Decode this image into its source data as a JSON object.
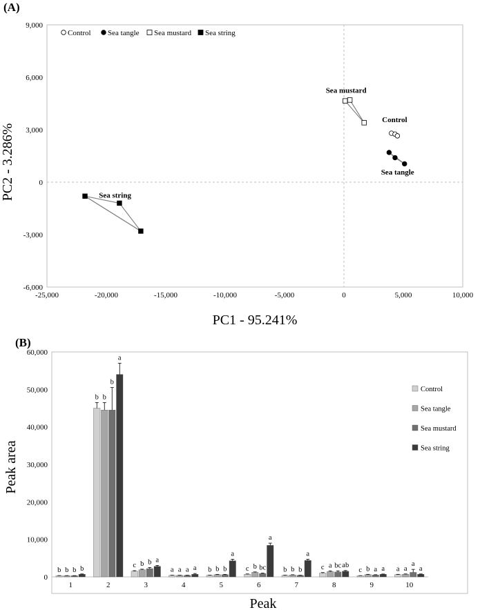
{
  "panels": {
    "a_label": "(A)",
    "b_label": "(B)"
  },
  "chart_data": [
    {
      "type": "scatter",
      "panel": "(A)",
      "xlabel": "PC1 - 95.241%",
      "ylabel": "PC2 - 3.286%",
      "xlim": [
        -25000,
        10000
      ],
      "ylim": [
        -6000,
        9000
      ],
      "xticks": [
        -25000,
        -20000,
        -15000,
        -10000,
        -5000,
        0,
        5000,
        10000
      ],
      "yticks": [
        -6000,
        -3000,
        0,
        3000,
        6000,
        9000
      ],
      "xtick_labels": [
        "-25,000",
        "-20,000",
        "-15,000",
        "-10,000",
        "-5,000",
        "0",
        "5,000",
        "10,000"
      ],
      "ytick_labels": [
        "-6,000",
        "-3,000",
        "0",
        "3,000",
        "6,000",
        "9,000"
      ],
      "legend": [
        "Control",
        "Sea tangle",
        "Sea mustard",
        "Sea string"
      ],
      "series": [
        {
          "name": "Control",
          "label": "Control",
          "marker": "open-circle",
          "points": [
            [
              4000,
              2800
            ],
            [
              4300,
              2750
            ],
            [
              4500,
              2650
            ]
          ]
        },
        {
          "name": "Sea tangle",
          "label": "Sea tangle",
          "marker": "filled-circle",
          "points": [
            [
              3800,
              1700
            ],
            [
              4300,
              1400
            ],
            [
              5100,
              1050
            ]
          ]
        },
        {
          "name": "Sea mustard",
          "label": "Sea mustard",
          "marker": "open-square",
          "points": [
            [
              100,
              4650
            ],
            [
              500,
              4700
            ],
            [
              1700,
              3400
            ]
          ]
        },
        {
          "name": "Sea string",
          "label": "Sea string",
          "marker": "filled-square",
          "points": [
            [
              -21800,
              -800
            ],
            [
              -18900,
              -1200
            ],
            [
              -17100,
              -2800
            ]
          ]
        }
      ]
    },
    {
      "type": "bar",
      "panel": "(B)",
      "xlabel": "Peak",
      "ylabel": "Peak area",
      "ylim": [
        0,
        60000
      ],
      "yticks": [
        0,
        10000,
        20000,
        30000,
        40000,
        50000,
        60000
      ],
      "ytick_labels": [
        "0",
        "10,000",
        "20,000",
        "30,000",
        "40,000",
        "50,000",
        "60,000"
      ],
      "categories": [
        "1",
        "2",
        "3",
        "4",
        "5",
        "6",
        "7",
        "8",
        "9",
        "10"
      ],
      "series": [
        {
          "name": "Control",
          "color": "#d0d0d0",
          "values": [
            300,
            45000,
            1500,
            400,
            400,
            700,
            400,
            1000,
            300,
            600
          ],
          "errors": [
            50,
            1500,
            150,
            50,
            60,
            80,
            60,
            150,
            40,
            80
          ],
          "letters": [
            "b",
            "b",
            "c",
            "a",
            "b",
            "c",
            "b",
            "c",
            "c",
            "a"
          ]
        },
        {
          "name": "Sea tangle",
          "color": "#a6a6a6",
          "values": [
            300,
            44500,
            1900,
            400,
            600,
            1200,
            500,
            1400,
            600,
            700
          ],
          "errors": [
            50,
            2000,
            150,
            50,
            70,
            120,
            70,
            200,
            80,
            80
          ],
          "letters": [
            "b",
            "b",
            "b",
            "a",
            "b",
            "b",
            "b",
            "a",
            "b",
            "a"
          ]
        },
        {
          "name": "Sea mustard",
          "color": "#707070",
          "values": [
            300,
            44500,
            2200,
            400,
            600,
            900,
            400,
            1300,
            500,
            1200
          ],
          "errors": [
            50,
            6000,
            300,
            50,
            70,
            120,
            50,
            300,
            80,
            800
          ],
          "letters": [
            "b",
            "b",
            "b",
            "a",
            "b",
            "bc",
            "b",
            "bc",
            "a",
            "a"
          ]
        },
        {
          "name": "Sea string",
          "color": "#3a3a3a",
          "values": [
            700,
            54000,
            2800,
            700,
            4300,
            8400,
            4400,
            1500,
            700,
            700
          ],
          "errors": [
            80,
            3000,
            250,
            200,
            400,
            600,
            300,
            200,
            60,
            80
          ],
          "letters": [
            "b",
            "a",
            "a",
            "a",
            "a",
            "a",
            "a",
            "ab",
            "a",
            "a"
          ]
        }
      ]
    }
  ]
}
